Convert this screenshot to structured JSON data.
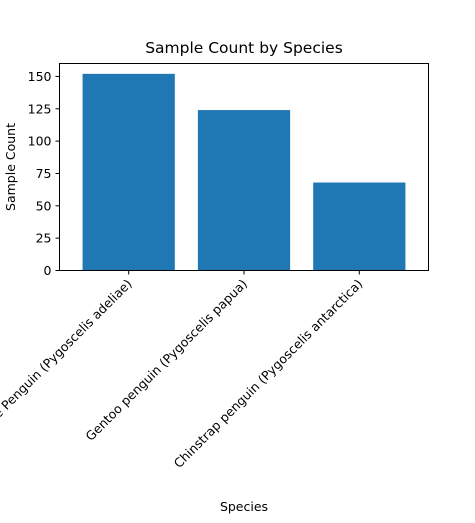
{
  "chart_data": {
    "type": "bar",
    "title": "Sample Count by Species",
    "xlabel": "Species",
    "ylabel": "Sample Count",
    "categories": [
      "Adelie Penguin (Pygoscelis adeliae)",
      "Gentoo penguin (Pygoscelis papua)",
      "Chinstrap penguin (Pygoscelis antarctica)"
    ],
    "values": [
      152,
      124,
      68
    ],
    "ylim": [
      0,
      160
    ],
    "yticks": [
      0,
      25,
      50,
      75,
      100,
      125,
      150
    ],
    "grid": false,
    "bar_color": "#1f77b4"
  }
}
